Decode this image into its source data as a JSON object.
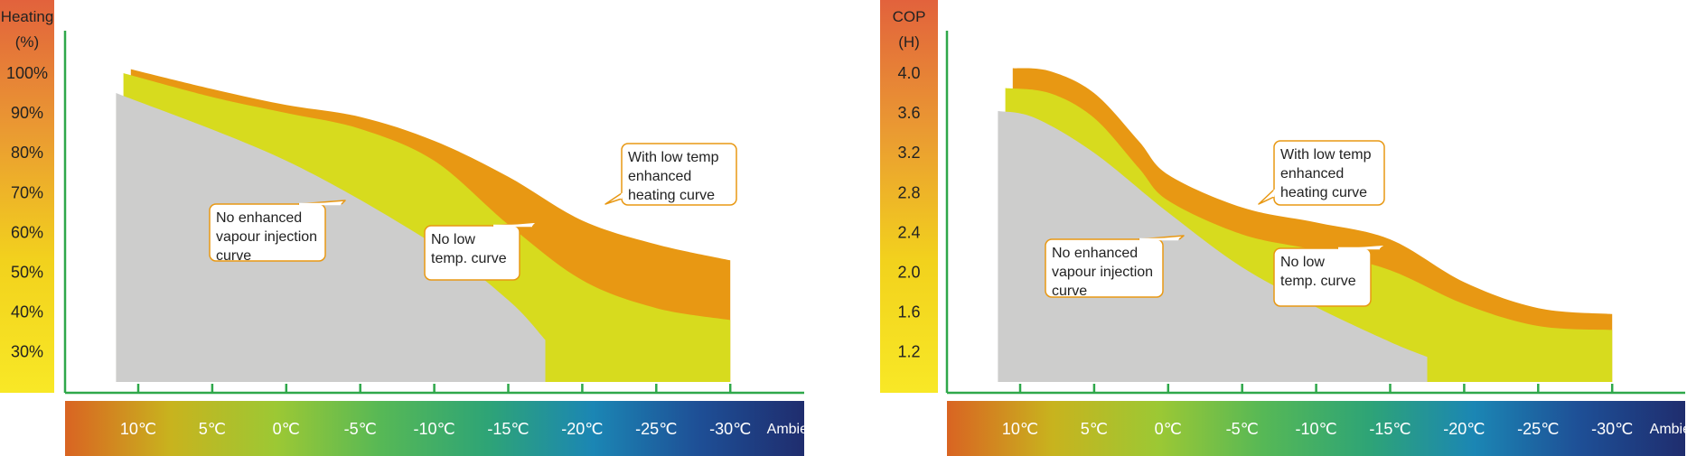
{
  "colors": {
    "axis": "#2fa84a",
    "gray": "#cdcdcc",
    "yellow": "#d7db1e",
    "orange": "#e89813",
    "callout_border": "#e89813",
    "tick_text": "#222222"
  },
  "scale_gradient": [
    "#d96422",
    "#c8b31e",
    "#9cc834",
    "#56b856",
    "#2ea476",
    "#1b86b4",
    "#1e4f96",
    "#1f2d6e"
  ],
  "ybar_gradient": [
    "#e2623c",
    "#ea9a32",
    "#f2d21d",
    "#f8e826"
  ],
  "chart_data": [
    {
      "type": "area",
      "ylabel": [
        "Heating",
        "(%)"
      ],
      "yticks": [
        "100%",
        "90%",
        "80%",
        "70%",
        "60%",
        "50%",
        "40%",
        "30%"
      ],
      "ylim": [
        23,
        104
      ],
      "xticks": [
        "10℃",
        "5℃",
        "0℃",
        "-5℃",
        "-10℃",
        "-15℃",
        "-20℃",
        "-25℃",
        "-30℃"
      ],
      "xlabel": "Ambient",
      "xlim": [
        11.5,
        -30
      ],
      "series": [
        {
          "role": "gray",
          "upper": [
            [
              11.5,
              95
            ],
            [
              0,
              78
            ],
            [
              -10,
              57
            ],
            [
              -15,
              43
            ],
            [
              -17.5,
              33
            ]
          ],
          "drop_to_base_at": -17.5
        },
        {
          "role": "yellow",
          "upper": [
            [
              11,
              100
            ],
            [
              5,
              94
            ],
            [
              0,
              90
            ],
            [
              -5,
              86
            ],
            [
              -10,
              78
            ],
            [
              -15,
              62
            ],
            [
              -20,
              48
            ],
            [
              -25,
              41
            ],
            [
              -30,
              38
            ]
          ],
          "lower": [
            [
              11.5,
              95
            ],
            [
              0,
              78
            ],
            [
              -10,
              57
            ],
            [
              -15,
              43
            ],
            [
              -17.5,
              33
            ]
          ],
          "lower_base_from": -17.5
        },
        {
          "role": "orange",
          "upper": [
            [
              10.5,
              101
            ],
            [
              5,
              96
            ],
            [
              0,
              92
            ],
            [
              -5,
              89
            ],
            [
              -10,
              83
            ],
            [
              -15,
              74
            ],
            [
              -20,
              63
            ],
            [
              -25,
              57
            ],
            [
              -30,
              53
            ]
          ],
          "lower": [
            [
              11,
              100
            ],
            [
              5,
              94
            ],
            [
              0,
              90
            ],
            [
              -5,
              86
            ],
            [
              -10,
              78
            ],
            [
              -15,
              62
            ],
            [
              -20,
              48
            ],
            [
              -25,
              41
            ],
            [
              -30,
              38
            ]
          ]
        }
      ],
      "annotations": [
        {
          "lines": [
            "No enhanced",
            "vapour injection",
            "curve"
          ]
        },
        {
          "lines": [
            "No low",
            "temp. curve"
          ]
        },
        {
          "lines": [
            "With low temp",
            "enhanced",
            "heating curve"
          ]
        }
      ]
    },
    {
      "type": "area",
      "ylabel": [
        "COP",
        "(H)"
      ],
      "yticks": [
        "4.0",
        "3.6",
        "3.2",
        "2.8",
        "2.4",
        "2.0",
        "1.6",
        "1.2"
      ],
      "ylim": [
        0.95,
        4.12
      ],
      "xticks": [
        "10℃",
        "5℃",
        "0℃",
        "-5℃",
        "-10℃",
        "-15℃",
        "-20℃",
        "-25℃",
        "-30℃"
      ],
      "xlabel": "Ambient",
      "xlim": [
        11.5,
        -30
      ],
      "series": [
        {
          "role": "gray",
          "upper": [
            [
              11.5,
              3.62
            ],
            [
              9,
              3.55
            ],
            [
              5,
              3.2
            ],
            [
              0,
              2.6
            ],
            [
              -5,
              2.05
            ],
            [
              -10,
              1.65
            ],
            [
              -15,
              1.3
            ],
            [
              -17.5,
              1.15
            ]
          ],
          "drop_to_base_at": -17.5
        },
        {
          "role": "yellow",
          "upper": [
            [
              11,
              3.85
            ],
            [
              8,
              3.8
            ],
            [
              5,
              3.55
            ],
            [
              2,
              3.05
            ],
            [
              0,
              2.72
            ],
            [
              -5,
              2.38
            ],
            [
              -10,
              2.22
            ],
            [
              -15,
              2.02
            ],
            [
              -20,
              1.68
            ],
            [
              -25,
              1.46
            ],
            [
              -30,
              1.42
            ]
          ],
          "lower": [
            [
              11.5,
              3.62
            ],
            [
              9,
              3.55
            ],
            [
              5,
              3.2
            ],
            [
              0,
              2.6
            ],
            [
              -5,
              2.05
            ],
            [
              -10,
              1.65
            ],
            [
              -15,
              1.3
            ],
            [
              -17.5,
              1.15
            ]
          ],
          "lower_base_from": -17.5
        },
        {
          "role": "orange",
          "upper": [
            [
              10.5,
              4.05
            ],
            [
              8,
              4.02
            ],
            [
              5,
              3.8
            ],
            [
              2,
              3.32
            ],
            [
              0,
              2.98
            ],
            [
              -5,
              2.65
            ],
            [
              -10,
              2.5
            ],
            [
              -15,
              2.33
            ],
            [
              -20,
              1.9
            ],
            [
              -25,
              1.64
            ],
            [
              -30,
              1.58
            ]
          ],
          "lower": [
            [
              11,
              3.85
            ],
            [
              8,
              3.8
            ],
            [
              5,
              3.55
            ],
            [
              2,
              3.05
            ],
            [
              0,
              2.72
            ],
            [
              -5,
              2.38
            ],
            [
              -10,
              2.22
            ],
            [
              -15,
              2.02
            ],
            [
              -20,
              1.68
            ],
            [
              -25,
              1.46
            ],
            [
              -30,
              1.42
            ]
          ]
        }
      ],
      "annotations": [
        {
          "lines": [
            "With low temp",
            "enhanced",
            "heating curve"
          ]
        },
        {
          "lines": [
            "No enhanced",
            "vapour injection",
            "curve"
          ]
        },
        {
          "lines": [
            "No low",
            "temp. curve"
          ]
        }
      ]
    }
  ]
}
